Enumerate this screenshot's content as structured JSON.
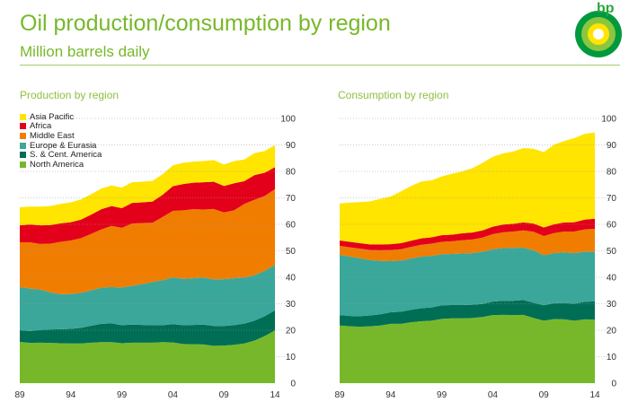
{
  "header": {
    "title": "Oil production/consumption by region",
    "subtitle": "Million barrels daily",
    "logo_text": "bp"
  },
  "colors": {
    "asia_pacific": "#ffe500",
    "africa": "#e3001b",
    "middle_east": "#f07d00",
    "europe_eurasia": "#3aa79a",
    "sc_america": "#006e55",
    "north_america": "#77b82a",
    "accent": "#77b82a",
    "gridline": "#999999"
  },
  "chart_data": [
    {
      "type": "area",
      "stacked": true,
      "title": "Production by region",
      "x": [
        1989,
        1990,
        1991,
        1992,
        1993,
        1994,
        1995,
        1996,
        1997,
        1998,
        1999,
        2000,
        2001,
        2002,
        2003,
        2004,
        2005,
        2006,
        2007,
        2008,
        2009,
        2010,
        2011,
        2012,
        2013,
        2014
      ],
      "xticks": [
        "89",
        "94",
        "99",
        "04",
        "09",
        "14"
      ],
      "ylim": [
        0,
        100
      ],
      "yticks": [
        0,
        10,
        20,
        30,
        40,
        50,
        60,
        70,
        80,
        90,
        100
      ],
      "grid": true,
      "legend_position": "top-left",
      "series": [
        {
          "name": "North America",
          "color_key": "north_america",
          "values": [
            15.6,
            15.2,
            15.3,
            15.2,
            15.1,
            15.0,
            15.0,
            15.3,
            15.5,
            15.5,
            15.1,
            15.3,
            15.3,
            15.3,
            15.5,
            15.4,
            14.8,
            14.7,
            14.6,
            14.1,
            14.2,
            14.5,
            15.0,
            16.1,
            17.8,
            19.9
          ]
        },
        {
          "name": "S. & Cent. America",
          "color_key": "sc_america",
          "values": [
            4.4,
            4.5,
            4.8,
            5.1,
            5.3,
            5.5,
            5.9,
            6.4,
            6.9,
            7.1,
            6.8,
            6.8,
            6.7,
            6.6,
            6.4,
            6.9,
            7.1,
            7.3,
            7.5,
            7.5,
            7.4,
            7.4,
            7.5,
            7.5,
            7.5,
            7.6
          ]
        },
        {
          "name": "Europe & Eurasia",
          "color_key": "europe_eurasia",
          "values": [
            16.3,
            16.0,
            15.3,
            14.0,
            13.2,
            13.2,
            13.2,
            13.4,
            13.7,
            13.7,
            14.2,
            14.7,
            15.4,
            16.3,
            17.0,
            17.6,
            17.5,
            17.6,
            17.8,
            17.6,
            17.7,
            17.7,
            17.4,
            17.2,
            17.1,
            17.2
          ]
        },
        {
          "name": "Middle East",
          "color_key": "middle_east",
          "values": [
            16.9,
            17.5,
            17.2,
            18.4,
            19.8,
            20.2,
            20.7,
            21.3,
            22.0,
            23.1,
            22.6,
            23.5,
            23.1,
            22.4,
            23.9,
            25.2,
            25.9,
            26.1,
            25.7,
            26.6,
            25.2,
            25.7,
            27.8,
            28.5,
            28.3,
            28.6
          ]
        },
        {
          "name": "Africa",
          "color_key": "africa",
          "values": [
            6.4,
            6.7,
            7.0,
            7.0,
            7.0,
            6.9,
            7.0,
            7.3,
            7.6,
            7.5,
            7.4,
            7.8,
            7.8,
            8.0,
            8.4,
            9.3,
            9.9,
            10.0,
            10.3,
            10.3,
            10.0,
            10.2,
            8.6,
            9.3,
            8.8,
            8.3
          ]
        },
        {
          "name": "Asia Pacific",
          "color_key": "asia_pacific",
          "values": [
            6.9,
            6.8,
            7.1,
            7.2,
            7.3,
            7.5,
            7.6,
            7.7,
            7.8,
            7.8,
            7.8,
            7.8,
            7.8,
            7.8,
            7.8,
            7.9,
            8.0,
            8.0,
            8.0,
            8.2,
            8.1,
            8.4,
            8.2,
            8.3,
            8.2,
            8.3
          ]
        }
      ]
    },
    {
      "type": "area",
      "stacked": true,
      "title": "Consumption by region",
      "x": [
        1989,
        1990,
        1991,
        1992,
        1993,
        1994,
        1995,
        1996,
        1997,
        1998,
        1999,
        2000,
        2001,
        2002,
        2003,
        2004,
        2005,
        2006,
        2007,
        2008,
        2009,
        2010,
        2011,
        2012,
        2013,
        2014
      ],
      "xticks": [
        "89",
        "94",
        "99",
        "04",
        "09",
        "14"
      ],
      "ylim": [
        0,
        100
      ],
      "yticks": [
        0,
        10,
        20,
        30,
        40,
        50,
        60,
        70,
        80,
        90,
        100
      ],
      "grid": true,
      "series": [
        {
          "name": "North America",
          "color_key": "north_america",
          "values": [
            21.8,
            21.5,
            21.3,
            21.5,
            21.8,
            22.4,
            22.4,
            23.0,
            23.4,
            23.6,
            24.3,
            24.5,
            24.5,
            24.6,
            25.0,
            25.7,
            25.8,
            25.7,
            25.8,
            24.6,
            23.6,
            24.2,
            24.1,
            23.6,
            24.1,
            24.0
          ]
        },
        {
          "name": "S. & Cent. America",
          "color_key": "sc_america",
          "values": [
            3.9,
            3.9,
            4.0,
            4.1,
            4.2,
            4.4,
            4.6,
            4.7,
            4.9,
            5.0,
            5.1,
            5.0,
            5.0,
            5.0,
            4.9,
            5.1,
            5.3,
            5.4,
            5.6,
            5.8,
            5.8,
            6.0,
            6.2,
            6.4,
            6.6,
            6.9
          ]
        },
        {
          "name": "Europe & Eurasia",
          "color_key": "europe_eurasia",
          "values": [
            22.8,
            22.4,
            21.9,
            20.9,
            20.2,
            19.3,
            19.3,
            19.4,
            19.5,
            19.5,
            19.3,
            19.3,
            19.5,
            19.5,
            19.7,
            19.8,
            19.9,
            20.0,
            19.8,
            19.8,
            18.9,
            18.9,
            19.1,
            19.1,
            18.9,
            18.7
          ]
        },
        {
          "name": "Middle East",
          "color_key": "middle_east",
          "values": [
            3.4,
            3.5,
            3.6,
            3.8,
            4.0,
            4.2,
            4.3,
            4.4,
            4.5,
            4.6,
            4.7,
            4.8,
            5.0,
            5.2,
            5.4,
            5.7,
            6.0,
            6.2,
            6.5,
            7.0,
            7.3,
            7.6,
            7.9,
            8.2,
            8.5,
            8.7
          ]
        },
        {
          "name": "Africa",
          "color_key": "africa",
          "values": [
            2.0,
            2.1,
            2.1,
            2.1,
            2.2,
            2.2,
            2.3,
            2.3,
            2.4,
            2.4,
            2.5,
            2.5,
            2.6,
            2.6,
            2.7,
            2.8,
            2.9,
            2.9,
            3.0,
            3.1,
            3.2,
            3.3,
            3.4,
            3.5,
            3.7,
            3.8
          ]
        },
        {
          "name": "Asia Pacific",
          "color_key": "asia_pacific",
          "values": [
            14.0,
            14.8,
            15.5,
            16.3,
            17.2,
            18.0,
            19.5,
            20.7,
            21.5,
            21.5,
            22.2,
            23.0,
            23.4,
            24.3,
            25.5,
            26.4,
            26.9,
            27.3,
            28.1,
            28.2,
            28.5,
            30.1,
            30.8,
            31.8,
            32.4,
            32.6
          ]
        }
      ]
    }
  ]
}
